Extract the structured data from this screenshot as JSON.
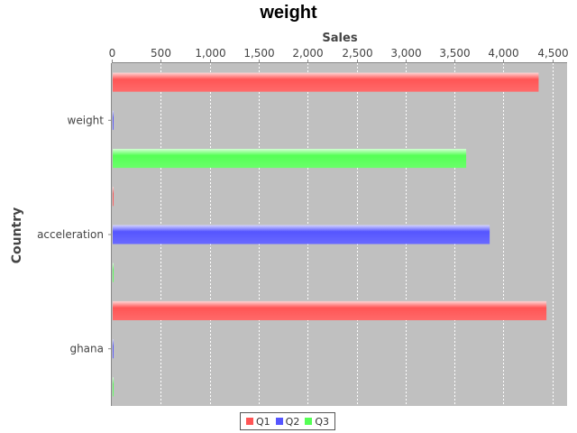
{
  "chart_data": {
    "type": "bar",
    "orientation": "horizontal",
    "title": "weight",
    "xlabel": "Sales",
    "ylabel": "Country",
    "xlim": [
      0,
      4650
    ],
    "xticks": [
      0,
      500,
      1000,
      1500,
      2000,
      2500,
      3000,
      3500,
      4000,
      4500
    ],
    "xtick_labels": [
      "0",
      "500",
      "1,000",
      "1,500",
      "2,000",
      "2,500",
      "3,000",
      "3,500",
      "4,000",
      "4,500"
    ],
    "categories": [
      "weight",
      "acceleration",
      "ghana"
    ],
    "series": [
      {
        "name": "Q1",
        "color": "#ff5555",
        "values": [
          4350,
          0,
          4430
        ]
      },
      {
        "name": "Q2",
        "color": "#5555ff",
        "values": [
          0,
          3850,
          0
        ]
      },
      {
        "name": "Q3",
        "color": "#55ff55",
        "values": [
          3610,
          0,
          0
        ]
      }
    ],
    "grid": true,
    "legend_position": "bottom",
    "plot_background": "#c0c0c0"
  }
}
